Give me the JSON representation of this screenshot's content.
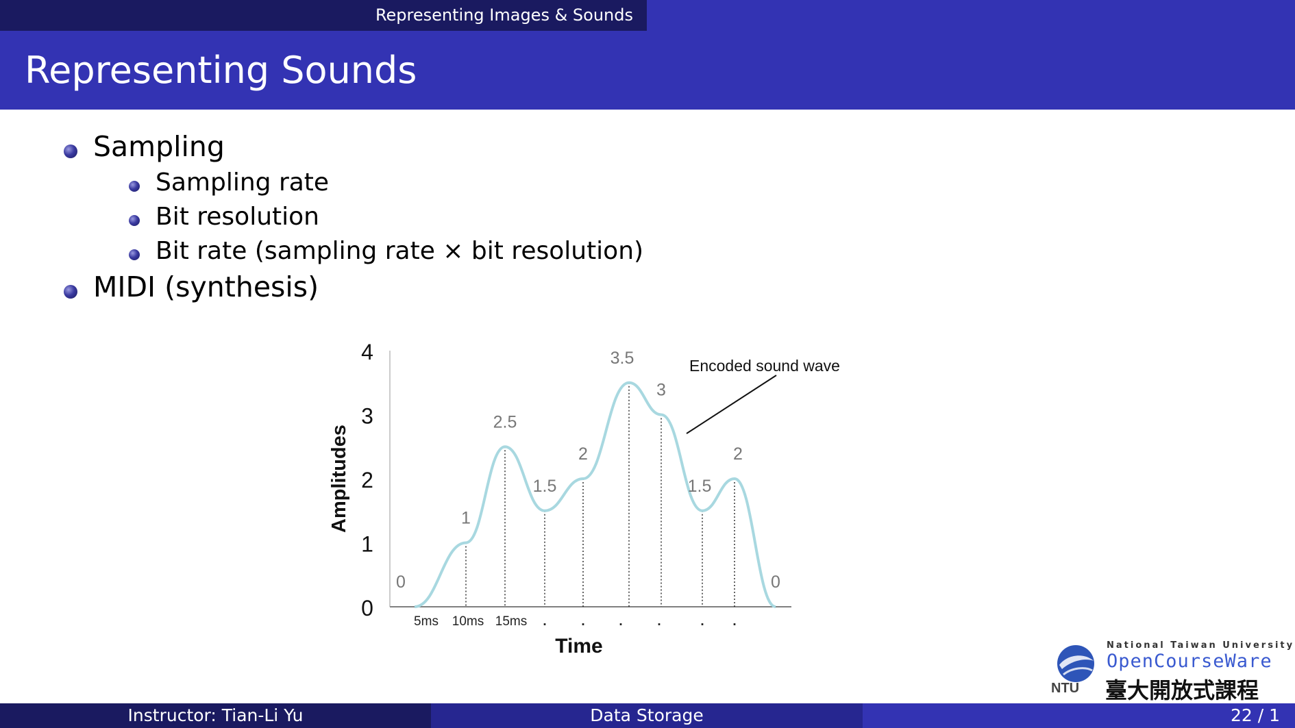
{
  "header": {
    "section": "Representing Images & Sounds",
    "title": "Representing Sounds"
  },
  "bullets": [
    {
      "label": "Sampling"
    },
    {
      "label": "Sampling rate"
    },
    {
      "label": "Bit resolution"
    },
    {
      "label": "Bit rate (sampling rate × bit resolution)"
    },
    {
      "label": "MIDI (synthesis)"
    }
  ],
  "chart_data": {
    "type": "line",
    "title": "",
    "xlabel": "Time",
    "ylabel": "Amplitudes",
    "ylim": [
      0,
      4
    ],
    "y_ticks": [
      "0",
      "1",
      "2",
      "3",
      "4"
    ],
    "x_ticks": [
      "5ms",
      "10ms",
      "15ms",
      ".",
      ".",
      ".",
      ".",
      ".",
      "."
    ],
    "samples": [
      {
        "label": "0",
        "value": 0
      },
      {
        "label": "1",
        "value": 1
      },
      {
        "label": "2.5",
        "value": 2.5
      },
      {
        "label": "1.5",
        "value": 1.5
      },
      {
        "label": "2",
        "value": 2
      },
      {
        "label": "3.5",
        "value": 3.5
      },
      {
        "label": "3",
        "value": 3
      },
      {
        "label": "1.5",
        "value": 1.5
      },
      {
        "label": "2",
        "value": 2
      },
      {
        "label": "0",
        "value": 0
      }
    ],
    "annotation": "Encoded sound wave",
    "line_color": "#a8d8e0"
  },
  "footer": {
    "instructor": "Instructor: Tian-Li Yu",
    "course": "Data Storage",
    "page": "22 / 1"
  },
  "logo": {
    "line1": "National Taiwan University",
    "line2": "OpenCourseWare",
    "line3": "臺大開放式課程"
  },
  "colors": {
    "bar_dark": "#1a1a60",
    "bar_main": "#3333b3"
  }
}
